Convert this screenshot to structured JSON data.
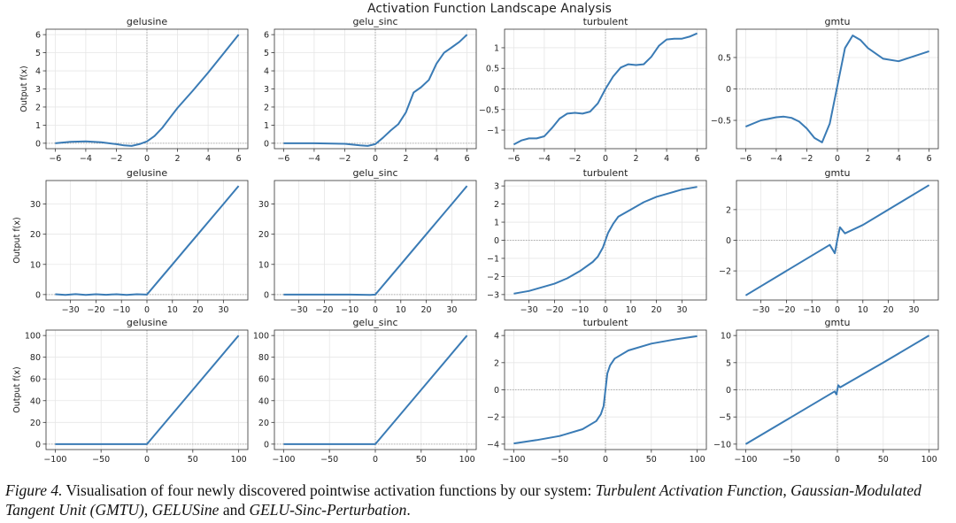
{
  "figure": {
    "suptitle": "Activation Function Landscape Analysis",
    "ylabel": "Output f(x)",
    "line_color": "#3a7bb5"
  },
  "caption": {
    "label": "Figure 4.",
    "text_1": " Visualisation of four newly discovered pointwise activation functions by our system: ",
    "name_1": "Turbulent Activation Function",
    "sep_1": ", ",
    "name_2": "Gaussian-Modulated Tangent Unit (GMTU)",
    "sep_2": ", ",
    "name_3": "GELUSine",
    "text_2": " and ",
    "name_4": "GELU-Sinc-Perturbation",
    "end": "."
  },
  "chart_data": [
    {
      "type": "line",
      "row": 0,
      "col": 0,
      "title": "gelusine",
      "xlabel": "",
      "ylabel": "Output f(x)",
      "xlim": [
        -6.6,
        6.6
      ],
      "ylim": [
        -0.3,
        6.3
      ],
      "xticks": [
        -6,
        -4,
        -2,
        0,
        2,
        4,
        6
      ],
      "yticks": [
        0,
        1,
        2,
        3,
        4,
        5,
        6
      ],
      "grid": true,
      "series": [
        {
          "name": "gelusine",
          "x": [
            -6,
            -5,
            -4,
            -3,
            -2,
            -1.5,
            -1,
            -0.5,
            0,
            0.5,
            1,
            1.5,
            2,
            3,
            4,
            5,
            6
          ],
          "y": [
            0.0,
            0.08,
            0.1,
            0.05,
            -0.05,
            -0.12,
            -0.15,
            -0.05,
            0.1,
            0.4,
            0.85,
            1.4,
            1.95,
            2.9,
            3.9,
            4.95,
            6.0
          ]
        }
      ]
    },
    {
      "type": "line",
      "row": 0,
      "col": 1,
      "title": "gelu_sinc",
      "xlabel": "",
      "ylabel": "",
      "xlim": [
        -6.6,
        6.6
      ],
      "ylim": [
        -0.3,
        6.3
      ],
      "xticks": [
        -6,
        -4,
        -2,
        0,
        2,
        4,
        6
      ],
      "yticks": [
        0,
        1,
        2,
        3,
        4,
        5,
        6
      ],
      "grid": true,
      "series": [
        {
          "name": "gelu_sinc",
          "x": [
            -6,
            -4,
            -2,
            -1,
            -0.5,
            0,
            0.5,
            1,
            1.5,
            2,
            2.5,
            3,
            3.5,
            4,
            4.5,
            5,
            5.5,
            6
          ],
          "y": [
            0.0,
            0.0,
            -0.03,
            -0.12,
            -0.15,
            -0.05,
            0.3,
            0.7,
            1.05,
            1.7,
            2.8,
            3.1,
            3.5,
            4.4,
            5.0,
            5.3,
            5.6,
            6.0
          ]
        }
      ]
    },
    {
      "type": "line",
      "row": 0,
      "col": 2,
      "title": "turbulent",
      "xlabel": "",
      "ylabel": "",
      "xlim": [
        -6.6,
        6.6
      ],
      "ylim": [
        -1.45,
        1.45
      ],
      "xticks": [
        -6,
        -4,
        -2,
        0,
        2,
        4,
        6
      ],
      "yticks": [
        -1.0,
        -0.5,
        0.0,
        0.5,
        1.0
      ],
      "grid": true,
      "series": [
        {
          "name": "turbulent",
          "x": [
            -6,
            -5.5,
            -5,
            -4.5,
            -4,
            -3.5,
            -3,
            -2.5,
            -2,
            -1.5,
            -1,
            -0.5,
            0,
            0.5,
            1,
            1.5,
            2,
            2.5,
            3,
            3.5,
            4,
            4.5,
            5,
            5.5,
            6
          ],
          "y": [
            -1.35,
            -1.25,
            -1.2,
            -1.2,
            -1.15,
            -0.95,
            -0.72,
            -0.6,
            -0.58,
            -0.6,
            -0.55,
            -0.35,
            0.0,
            0.3,
            0.52,
            0.6,
            0.58,
            0.6,
            0.78,
            1.05,
            1.2,
            1.22,
            1.22,
            1.27,
            1.35
          ]
        }
      ]
    },
    {
      "type": "line",
      "row": 0,
      "col": 3,
      "title": "gmtu",
      "xlabel": "",
      "ylabel": "",
      "xlim": [
        -6.6,
        6.6
      ],
      "ylim": [
        -0.95,
        0.95
      ],
      "xticks": [
        -6,
        -4,
        -2,
        0,
        2,
        4,
        6
      ],
      "yticks": [
        -0.5,
        0.0,
        0.5
      ],
      "grid": true,
      "series": [
        {
          "name": "gmtu",
          "x": [
            -6,
            -5,
            -4,
            -3.5,
            -3,
            -2.5,
            -2,
            -1.5,
            -1,
            -0.5,
            0,
            0.5,
            1,
            1.5,
            2,
            3,
            4,
            5,
            6
          ],
          "y": [
            -0.6,
            -0.5,
            -0.45,
            -0.44,
            -0.46,
            -0.52,
            -0.63,
            -0.78,
            -0.85,
            -0.55,
            0.05,
            0.65,
            0.85,
            0.78,
            0.65,
            0.48,
            0.44,
            0.52,
            0.6
          ]
        }
      ]
    },
    {
      "type": "line",
      "row": 1,
      "col": 0,
      "title": "gelusine",
      "xlabel": "",
      "ylabel": "Output f(x)",
      "xlim": [
        -39.6,
        39.6
      ],
      "ylim": [
        -1.8,
        37.8
      ],
      "xticks": [
        -30,
        -20,
        -10,
        0,
        10,
        20,
        30
      ],
      "yticks": [
        0,
        10,
        20,
        30
      ],
      "grid": true,
      "series": [
        {
          "name": "gelusine",
          "x": [
            -36,
            -32,
            -28,
            -24,
            -20,
            -16,
            -12,
            -8,
            -4,
            0,
            5,
            10,
            15,
            20,
            25,
            30,
            36
          ],
          "y": [
            0.1,
            -0.1,
            0.15,
            -0.1,
            0.12,
            -0.08,
            0.1,
            -0.1,
            0.1,
            0,
            5,
            10,
            15,
            20,
            25,
            30,
            36
          ]
        }
      ]
    },
    {
      "type": "line",
      "row": 1,
      "col": 1,
      "title": "gelu_sinc",
      "xlabel": "",
      "ylabel": "",
      "xlim": [
        -39.6,
        39.6
      ],
      "ylim": [
        -1.8,
        37.8
      ],
      "xticks": [
        -30,
        -20,
        -10,
        0,
        10,
        20,
        30
      ],
      "yticks": [
        0,
        10,
        20,
        30
      ],
      "grid": true,
      "series": [
        {
          "name": "gelu_sinc",
          "x": [
            -36,
            -20,
            -10,
            -2,
            0,
            2,
            5,
            10,
            15,
            20,
            25,
            30,
            36
          ],
          "y": [
            0,
            0,
            0,
            -0.1,
            0,
            2,
            5,
            10,
            15,
            20,
            25,
            30,
            36
          ]
        }
      ]
    },
    {
      "type": "line",
      "row": 1,
      "col": 2,
      "title": "turbulent",
      "xlabel": "",
      "ylabel": "",
      "xlim": [
        -39.6,
        39.6
      ],
      "ylim": [
        -3.3,
        3.3
      ],
      "xticks": [
        -30,
        -20,
        -10,
        0,
        10,
        20,
        30
      ],
      "yticks": [
        -3,
        -2,
        -1,
        0,
        1,
        2,
        3
      ],
      "grid": true,
      "series": [
        {
          "name": "turbulent",
          "x": [
            -36,
            -30,
            -25,
            -20,
            -15,
            -10,
            -5,
            -3,
            -1,
            0,
            1,
            3,
            5,
            10,
            15,
            20,
            25,
            30,
            36
          ],
          "y": [
            -2.95,
            -2.8,
            -2.6,
            -2.4,
            -2.1,
            -1.7,
            -1.2,
            -0.9,
            -0.4,
            0.0,
            0.4,
            0.9,
            1.3,
            1.7,
            2.1,
            2.4,
            2.6,
            2.8,
            2.95
          ]
        }
      ]
    },
    {
      "type": "line",
      "row": 1,
      "col": 3,
      "title": "gmtu",
      "xlabel": "",
      "ylabel": "",
      "xlim": [
        -39.6,
        39.6
      ],
      "ylim": [
        -3.9,
        3.9
      ],
      "xticks": [
        -30,
        -20,
        -10,
        0,
        10,
        20,
        30
      ],
      "yticks": [
        -2,
        0,
        2
      ],
      "grid": true,
      "series": [
        {
          "name": "gmtu",
          "x": [
            -36,
            -20,
            -10,
            -3,
            -1,
            0,
            1,
            3,
            10,
            20,
            36
          ],
          "y": [
            -3.6,
            -2.0,
            -1.0,
            -0.3,
            -0.85,
            0.05,
            0.85,
            0.45,
            1.0,
            2.0,
            3.6
          ]
        }
      ]
    },
    {
      "type": "line",
      "row": 2,
      "col": 0,
      "title": "gelusine",
      "xlabel": "",
      "ylabel": "Output f(x)",
      "xlim": [
        -110,
        110
      ],
      "ylim": [
        -5,
        105
      ],
      "xticks": [
        -100,
        -50,
        0,
        50,
        100
      ],
      "yticks": [
        0,
        20,
        40,
        60,
        80,
        100
      ],
      "grid": true,
      "series": [
        {
          "name": "gelusine",
          "x": [
            -100,
            -50,
            0,
            50,
            100
          ],
          "y": [
            0,
            0,
            0,
            50,
            100
          ]
        }
      ]
    },
    {
      "type": "line",
      "row": 2,
      "col": 1,
      "title": "gelu_sinc",
      "xlabel": "",
      "ylabel": "",
      "xlim": [
        -110,
        110
      ],
      "ylim": [
        -5,
        105
      ],
      "xticks": [
        -100,
        -50,
        0,
        50,
        100
      ],
      "yticks": [
        0,
        20,
        40,
        60,
        80,
        100
      ],
      "grid": true,
      "series": [
        {
          "name": "gelu_sinc",
          "x": [
            -100,
            -50,
            0,
            50,
            100
          ],
          "y": [
            0,
            0,
            0,
            50,
            100
          ]
        }
      ]
    },
    {
      "type": "line",
      "row": 2,
      "col": 2,
      "title": "turbulent",
      "xlabel": "",
      "ylabel": "",
      "xlim": [
        -110,
        110
      ],
      "ylim": [
        -4.4,
        4.4
      ],
      "xticks": [
        -100,
        -50,
        0,
        50,
        100
      ],
      "yticks": [
        -4,
        -2,
        0,
        2,
        4
      ],
      "grid": true,
      "series": [
        {
          "name": "turbulent",
          "x": [
            -100,
            -75,
            -50,
            -25,
            -10,
            -5,
            -2,
            0,
            2,
            5,
            10,
            25,
            50,
            75,
            100
          ],
          "y": [
            -3.95,
            -3.7,
            -3.4,
            -2.9,
            -2.3,
            -1.8,
            -1.2,
            0.0,
            1.2,
            1.8,
            2.3,
            2.9,
            3.4,
            3.7,
            3.95
          ]
        }
      ]
    },
    {
      "type": "line",
      "row": 2,
      "col": 3,
      "title": "gmtu",
      "xlabel": "",
      "ylabel": "",
      "xlim": [
        -110,
        110
      ],
      "ylim": [
        -11,
        11
      ],
      "xticks": [
        -100,
        -50,
        0,
        50,
        100
      ],
      "yticks": [
        -10,
        -5,
        0,
        5,
        10
      ],
      "grid": true,
      "series": [
        {
          "name": "gmtu",
          "x": [
            -100,
            -50,
            -3,
            -1,
            0,
            1,
            3,
            50,
            100
          ],
          "y": [
            -10,
            -5,
            -0.3,
            -0.85,
            0.05,
            0.85,
            0.45,
            5,
            10
          ]
        }
      ]
    }
  ]
}
